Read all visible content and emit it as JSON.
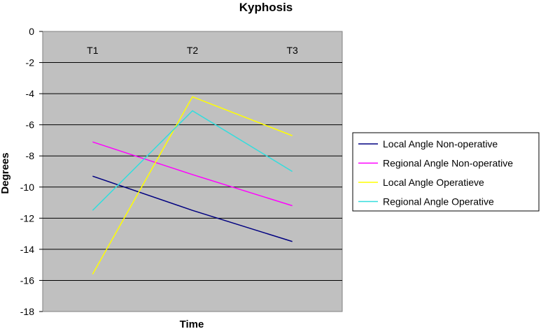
{
  "chart_data": {
    "type": "line",
    "title": "Kyphosis",
    "xlabel": "Time",
    "ylabel": "Degrees",
    "categories": [
      "T1",
      "T2",
      "T3"
    ],
    "ylim": [
      -18,
      0
    ],
    "yticks": [
      0,
      -2,
      -4,
      -6,
      -8,
      -10,
      -12,
      -14,
      -16,
      -18
    ],
    "grid": true,
    "legend_position": "right",
    "series": [
      {
        "name": "Local Angle Non-operative",
        "color": "#000080",
        "values": [
          -9.3,
          -11.5,
          -13.5
        ]
      },
      {
        "name": "Regional Angle Non-operative",
        "color": "#ff00ff",
        "values": [
          -7.1,
          -9.2,
          -11.2
        ]
      },
      {
        "name": "Local Angle Operatieve",
        "color": "#ffff00",
        "values": [
          -15.6,
          -4.2,
          -6.7
        ]
      },
      {
        "name": "Regional Angle Operative",
        "color": "#33dddd",
        "values": [
          -11.5,
          -5.1,
          -9.0
        ]
      }
    ]
  }
}
